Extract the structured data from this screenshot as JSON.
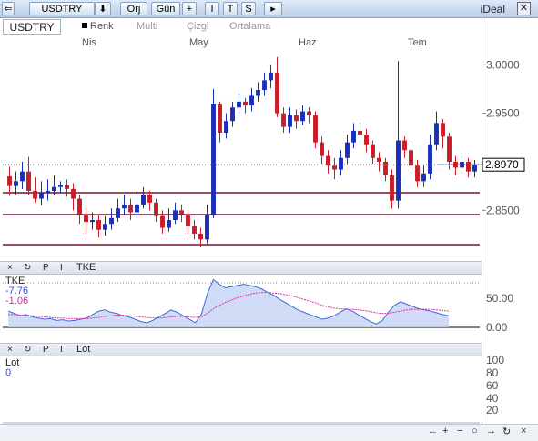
{
  "toolbar": {
    "symbol": "USDTRY",
    "nav_icon": "window-nav-icon",
    "down_arrow": "⬇",
    "period_avg": "Orj",
    "period_day": "Gün",
    "plus": "+",
    "i": "I",
    "t": "T",
    "s": "S",
    "more": "▸",
    "app_name": "iDeal",
    "close": "✕"
  },
  "chart_header": {
    "symbol": "USDTRY",
    "color_label": "Renk",
    "multi_label": "Multi",
    "draw_label": "Çizgi",
    "avg_label": "Ortalama"
  },
  "months": [
    "Nis",
    "May",
    "Haz",
    "Tem"
  ],
  "price_axis": {
    "ticks": [
      "3.0000",
      "2.9500",
      "2.8970",
      "2.8500"
    ],
    "current": "2.8970"
  },
  "tke_panel": {
    "controls": [
      "×",
      "↻",
      "P",
      "I"
    ],
    "title": "TKE",
    "name": "TKE",
    "value1": "-7.76",
    "value2": "-1.06",
    "ticks": [
      "50.00",
      "0.00"
    ]
  },
  "lot_panel": {
    "controls": [
      "×",
      "↻",
      "P",
      "I"
    ],
    "title": "Lot",
    "name": "Lot",
    "value": "0",
    "ticks": [
      "100",
      "80",
      "60",
      "40",
      "20"
    ]
  },
  "status": {
    "nav": [
      "←",
      "+",
      "−",
      "○",
      "→",
      "↻",
      "×"
    ]
  },
  "colors": {
    "up": "#1a2fb8",
    "down": "#c81e2a",
    "hline": "#7a1030",
    "tke_line": "#3a6ad8",
    "tke_fill": "#c8d6f4",
    "tke_signal": "#e030a0"
  },
  "chart_data": {
    "type": "candlestick",
    "x": [
      "Nis",
      "May",
      "Haz",
      "Tem"
    ],
    "ylim": [
      2.81,
      3.02
    ],
    "horizontal_levels": [
      2.87,
      2.84,
      2.81
    ],
    "candles": [
      [
        2.885,
        2.875,
        2.895,
        2.865
      ],
      [
        2.875,
        2.88,
        2.89,
        2.866
      ],
      [
        2.88,
        2.89,
        2.9,
        2.872
      ],
      [
        2.89,
        2.87,
        2.905,
        2.866
      ],
      [
        2.87,
        2.862,
        2.884,
        2.858
      ],
      [
        2.862,
        2.868,
        2.88,
        2.855
      ],
      [
        2.868,
        2.87,
        2.882,
        2.86
      ],
      [
        2.87,
        2.874,
        2.886,
        2.866
      ],
      [
        2.874,
        2.876,
        2.88,
        2.868
      ],
      [
        2.876,
        2.872,
        2.882,
        2.864
      ],
      [
        2.872,
        2.862,
        2.878,
        2.85
      ],
      [
        2.862,
        2.846,
        2.866,
        2.836
      ],
      [
        2.846,
        2.838,
        2.852,
        2.826
      ],
      [
        2.838,
        2.84,
        2.848,
        2.83
      ],
      [
        2.84,
        2.83,
        2.846,
        2.822
      ],
      [
        2.83,
        2.836,
        2.844,
        2.824
      ],
      [
        2.836,
        2.842,
        2.852,
        2.83
      ],
      [
        2.842,
        2.852,
        2.862,
        2.838
      ],
      [
        2.852,
        2.856,
        2.866,
        2.846
      ],
      [
        2.856,
        2.848,
        2.862,
        2.84
      ],
      [
        2.848,
        2.856,
        2.866,
        2.842
      ],
      [
        2.856,
        2.866,
        2.874,
        2.852
      ],
      [
        2.866,
        2.858,
        2.87,
        2.85
      ],
      [
        2.858,
        2.844,
        2.862,
        2.838
      ],
      [
        2.844,
        2.832,
        2.85,
        2.826
      ],
      [
        2.832,
        2.84,
        2.852,
        2.828
      ],
      [
        2.84,
        2.85,
        2.858,
        2.836
      ],
      [
        2.85,
        2.846,
        2.856,
        2.838
      ],
      [
        2.846,
        2.834,
        2.85,
        2.826
      ],
      [
        2.834,
        2.826,
        2.84,
        2.82
      ],
      [
        2.826,
        2.82,
        2.832,
        2.812
      ],
      [
        2.82,
        2.846,
        2.856,
        2.816
      ],
      [
        2.846,
        2.96,
        2.975,
        2.842
      ],
      [
        2.96,
        2.93,
        2.962,
        2.92
      ],
      [
        2.93,
        2.942,
        2.95,
        2.924
      ],
      [
        2.942,
        2.956,
        2.962,
        2.936
      ],
      [
        2.956,
        2.962,
        2.97,
        2.95
      ],
      [
        2.962,
        2.958,
        2.966,
        2.95
      ],
      [
        2.958,
        2.968,
        2.976,
        2.952
      ],
      [
        2.968,
        2.974,
        2.982,
        2.962
      ],
      [
        2.974,
        2.984,
        2.992,
        2.968
      ],
      [
        2.984,
        2.992,
        3.0,
        2.976
      ],
      [
        2.992,
        2.95,
        3.008,
        2.946
      ],
      [
        2.95,
        2.936,
        2.956,
        2.93
      ],
      [
        2.936,
        2.948,
        2.956,
        2.93
      ],
      [
        2.948,
        2.942,
        2.954,
        2.934
      ],
      [
        2.942,
        2.952,
        2.958,
        2.938
      ],
      [
        2.952,
        2.948,
        2.956,
        2.94
      ],
      [
        2.948,
        2.92,
        2.952,
        2.914
      ],
      [
        2.92,
        2.906,
        2.926,
        2.898
      ],
      [
        2.906,
        2.896,
        2.912,
        2.888
      ],
      [
        2.896,
        2.892,
        2.904,
        2.882
      ],
      [
        2.892,
        2.904,
        2.912,
        2.886
      ],
      [
        2.904,
        2.92,
        2.928,
        2.898
      ],
      [
        2.92,
        2.932,
        2.94,
        2.914
      ],
      [
        2.932,
        2.928,
        2.94,
        2.92
      ],
      [
        2.928,
        2.918,
        2.934,
        2.91
      ],
      [
        2.918,
        2.904,
        2.922,
        2.898
      ],
      [
        2.904,
        2.9,
        2.91,
        2.89
      ],
      [
        2.9,
        2.886,
        2.904,
        2.88
      ],
      [
        2.886,
        2.86,
        2.892,
        2.852
      ],
      [
        2.86,
        2.922,
        3.004,
        2.852
      ],
      [
        2.922,
        2.912,
        2.926,
        2.904
      ],
      [
        2.912,
        2.896,
        2.918,
        2.888
      ],
      [
        2.896,
        2.88,
        2.902,
        2.874
      ],
      [
        2.88,
        2.888,
        2.896,
        2.874
      ],
      [
        2.888,
        2.918,
        2.928,
        2.882
      ],
      [
        2.918,
        2.94,
        2.952,
        2.912
      ],
      [
        2.94,
        2.926,
        2.944,
        2.914
      ],
      [
        2.926,
        2.9,
        2.93,
        2.892
      ],
      [
        2.9,
        2.894,
        2.906,
        2.886
      ],
      [
        2.894,
        2.9,
        2.906,
        2.888
      ],
      [
        2.9,
        2.89,
        2.904,
        2.884
      ],
      [
        2.89,
        2.897,
        2.902,
        2.884
      ]
    ],
    "tke": [
      28,
      24,
      20,
      22,
      18,
      16,
      14,
      15,
      12,
      13,
      11,
      12,
      14,
      16,
      22,
      28,
      30,
      26,
      24,
      20,
      18,
      14,
      10,
      8,
      12,
      18,
      24,
      30,
      26,
      20,
      14,
      8,
      22,
      58,
      82,
      74,
      68,
      70,
      72,
      74,
      72,
      70,
      66,
      60,
      55,
      48,
      42,
      36,
      30,
      26,
      22,
      18,
      14,
      16,
      20,
      26,
      32,
      28,
      22,
      16,
      10,
      6,
      12,
      26,
      38,
      44,
      40,
      36,
      32,
      30,
      28,
      25,
      22,
      20
    ],
    "tke_signal": [
      22,
      22,
      21,
      20,
      20,
      19,
      18,
      17,
      16,
      16,
      15,
      15,
      15,
      15,
      16,
      17,
      19,
      20,
      21,
      21,
      20,
      19,
      18,
      17,
      16,
      16,
      17,
      18,
      19,
      19,
      18,
      17,
      18,
      24,
      32,
      38,
      43,
      47,
      51,
      54,
      57,
      59,
      60,
      60,
      59,
      58,
      56,
      54,
      51,
      48,
      45,
      42,
      38,
      35,
      33,
      32,
      31,
      31,
      30,
      29,
      27,
      25,
      24,
      24,
      26,
      28,
      30,
      31,
      31,
      31,
      31,
      30,
      29,
      28
    ]
  }
}
